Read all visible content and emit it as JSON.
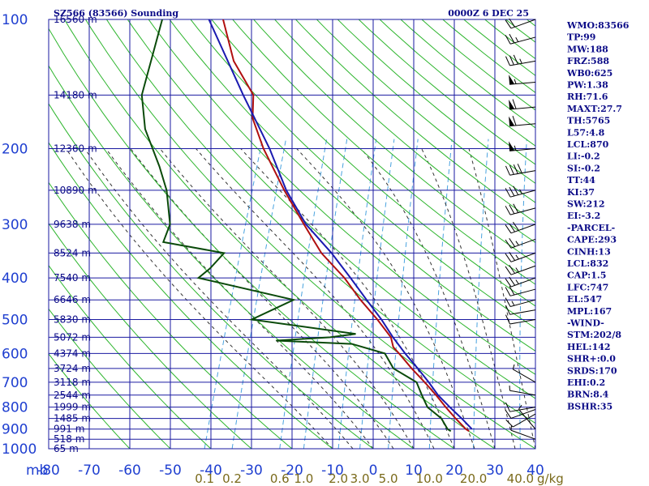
{
  "header": {
    "station": "SZ566 (83566) Sounding",
    "time": "0000Z  6 DEC 25"
  },
  "colors": {
    "grid": "#1a1aa0",
    "dry_adiabat": "#2db52d",
    "moist_adiabat": "#333333",
    "mixing_ratio": "#4aa3df",
    "temperature": "#b01010",
    "dewpoint": "#0a4a0a",
    "parcel": "#1a1ab0"
  },
  "chart_data": {
    "type": "skew-t log-p sounding",
    "pressure_axis": {
      "label": "mb",
      "ticks": [
        "100",
        "200",
        "300",
        "400",
        "500",
        "600",
        "700",
        "800",
        "900",
        "1000"
      ],
      "range": [
        1000,
        100
      ],
      "scale": "log"
    },
    "temperature_axis": {
      "ticks": [
        "-80",
        "-70",
        "-60",
        "-50",
        "-40",
        "-30",
        "-20",
        "-10",
        "0",
        "10",
        "20",
        "30",
        "40"
      ],
      "range": [
        -80,
        40
      ]
    },
    "height_labels": [
      {
        "p": 100,
        "label": "16560 m"
      },
      {
        "p": 150,
        "label": "14180 m"
      },
      {
        "p": 200,
        "label": "12360 m"
      },
      {
        "p": 250,
        "label": "10890 m"
      },
      {
        "p": 300,
        "label": "9638 m"
      },
      {
        "p": 350,
        "label": "8524 m"
      },
      {
        "p": 400,
        "label": "7540 m"
      },
      {
        "p": 450,
        "label": "6646 m"
      },
      {
        "p": 500,
        "label": "5830 m"
      },
      {
        "p": 550,
        "label": "5072 m"
      },
      {
        "p": 600,
        "label": "4374 m"
      },
      {
        "p": 650,
        "label": "3724 m"
      },
      {
        "p": 700,
        "label": "3118 m"
      },
      {
        "p": 750,
        "label": "2544 m"
      },
      {
        "p": 800,
        "label": "1999 m"
      },
      {
        "p": 850,
        "label": "1485 m"
      },
      {
        "p": 900,
        "label": "991 m"
      },
      {
        "p": 950,
        "label": "518 m"
      },
      {
        "p": 1000,
        "label": "65 m"
      }
    ],
    "mixing_ratio_labels": [
      "0.1",
      "0.2",
      "0.6",
      "1.0",
      "2.0",
      "3.0",
      "5.0",
      "10.0",
      "20.0",
      "40.0",
      "g/kg"
    ],
    "mixing_ratio_values": [
      0.1,
      0.2,
      0.6,
      1.0,
      2.0,
      3.0,
      5.0,
      10.0,
      20.0,
      40.0
    ],
    "temperature_profile": [
      {
        "p": 100,
        "t": -77.0
      },
      {
        "p": 125,
        "t": -70.5
      },
      {
        "p": 150,
        "t": -62.5
      },
      {
        "p": 170,
        "t": -60.5
      },
      {
        "p": 200,
        "t": -55.0
      },
      {
        "p": 250,
        "t": -46.0
      },
      {
        "p": 300,
        "t": -38.0
      },
      {
        "p": 350,
        "t": -31.0
      },
      {
        "p": 400,
        "t": -23.0
      },
      {
        "p": 450,
        "t": -17.0
      },
      {
        "p": 500,
        "t": -11.0
      },
      {
        "p": 550,
        "t": -6.0
      },
      {
        "p": 580,
        "t": -4.5
      },
      {
        "p": 600,
        "t": -2.5
      },
      {
        "p": 650,
        "t": 2.0
      },
      {
        "p": 700,
        "t": 6.5
      },
      {
        "p": 750,
        "t": 10.5
      },
      {
        "p": 800,
        "t": 14.0
      },
      {
        "p": 850,
        "t": 17.5
      },
      {
        "p": 900,
        "t": 21.0
      },
      {
        "p": 910,
        "t": 22.0
      }
    ],
    "dewpoint_profile": [
      {
        "p": 100,
        "t": -92.0
      },
      {
        "p": 150,
        "t": -90.0
      },
      {
        "p": 180,
        "t": -86.0
      },
      {
        "p": 220,
        "t": -79.0
      },
      {
        "p": 250,
        "t": -75.0
      },
      {
        "p": 300,
        "t": -71.0
      },
      {
        "p": 330,
        "t": -71.0
      },
      {
        "p": 350,
        "t": -55.0
      },
      {
        "p": 380,
        "t": -57.0
      },
      {
        "p": 400,
        "t": -59.0
      },
      {
        "p": 450,
        "t": -33.5
      },
      {
        "p": 500,
        "t": -42.0
      },
      {
        "p": 540,
        "t": -15.0
      },
      {
        "p": 550,
        "t": -21.0
      },
      {
        "p": 560,
        "t": -34.0
      },
      {
        "p": 570,
        "t": -15.0
      },
      {
        "p": 600,
        "t": -6.0
      },
      {
        "p": 650,
        "t": -2.5
      },
      {
        "p": 700,
        "t": 4.5
      },
      {
        "p": 750,
        "t": 7.0
      },
      {
        "p": 800,
        "t": 9.5
      },
      {
        "p": 850,
        "t": 14.0
      },
      {
        "p": 900,
        "t": 16.5
      },
      {
        "p": 910,
        "t": 17.5
      }
    ],
    "parcel_profile": [
      {
        "p": 100,
        "t": -80.5
      },
      {
        "p": 150,
        "t": -65.0
      },
      {
        "p": 200,
        "t": -53.5
      },
      {
        "p": 250,
        "t": -45.5
      },
      {
        "p": 300,
        "t": -37.5
      },
      {
        "p": 350,
        "t": -28.5
      },
      {
        "p": 400,
        "t": -21.5
      },
      {
        "p": 450,
        "t": -15.5
      },
      {
        "p": 500,
        "t": -10.0
      },
      {
        "p": 550,
        "t": -5.5
      },
      {
        "p": 600,
        "t": -1.0
      },
      {
        "p": 650,
        "t": 3.5
      },
      {
        "p": 700,
        "t": 7.5
      },
      {
        "p": 750,
        "t": 11.0
      },
      {
        "p": 800,
        "t": 15.0
      },
      {
        "p": 850,
        "t": 19.0
      },
      {
        "p": 900,
        "t": 22.5
      }
    ],
    "wind_barbs": [
      {
        "p": 100,
        "dir": 250,
        "spd": 20
      },
      {
        "p": 110,
        "dir": 255,
        "spd": 25
      },
      {
        "p": 125,
        "dir": 260,
        "spd": 35
      },
      {
        "p": 140,
        "dir": 265,
        "spd": 55
      },
      {
        "p": 160,
        "dir": 265,
        "spd": 60
      },
      {
        "p": 175,
        "dir": 265,
        "spd": 60
      },
      {
        "p": 200,
        "dir": 265,
        "spd": 55
      },
      {
        "p": 225,
        "dir": 260,
        "spd": 40
      },
      {
        "p": 250,
        "dir": 255,
        "spd": 35
      },
      {
        "p": 275,
        "dir": 255,
        "spd": 30
      },
      {
        "p": 300,
        "dir": 250,
        "spd": 30
      },
      {
        "p": 325,
        "dir": 250,
        "spd": 25
      },
      {
        "p": 350,
        "dir": 250,
        "spd": 25
      },
      {
        "p": 375,
        "dir": 250,
        "spd": 25
      },
      {
        "p": 400,
        "dir": 250,
        "spd": 25
      },
      {
        "p": 425,
        "dir": 255,
        "spd": 20
      },
      {
        "p": 450,
        "dir": 255,
        "spd": 15
      },
      {
        "p": 475,
        "dir": 260,
        "spd": 10
      },
      {
        "p": 500,
        "dir": 260,
        "spd": 10
      },
      {
        "p": 700,
        "dir": 300,
        "spd": 5
      },
      {
        "p": 750,
        "dir": 280,
        "spd": 5
      },
      {
        "p": 800,
        "dir": 260,
        "spd": 10
      },
      {
        "p": 810,
        "dir": 250,
        "spd": 10
      },
      {
        "p": 830,
        "dir": 240,
        "spd": 10
      },
      {
        "p": 900,
        "dir": 320,
        "spd": 5
      },
      {
        "p": 950,
        "dir": 290,
        "spd": 5
      }
    ]
  },
  "indices": [
    "WMO:83566",
    "TP:99",
    "MW:188",
    "FRZ:588",
    "WB0:625",
    "PW:1.38",
    "RH:71.6",
    "MAXT:27.7",
    "TH:5765",
    "L57:4.8",
    "LCL:870",
    "LI:-0.2",
    "SI:-0.2",
    "TT:44",
    "KI:37",
    "SW:212",
    "EI:-3.2",
    "-PARCEL-",
    "CAPE:293",
    "CINH:13",
    "LCL:832",
    "CAP:1.5",
    "LFC:747",
    "EL:547",
    "MPL:167",
    "-WIND-",
    "STM:202/8",
    "HEL:142",
    "SHR+:0.0",
    "SRDS:170",
    "EHI:0.2",
    "BRN:8.4",
    "BSHR:35"
  ]
}
